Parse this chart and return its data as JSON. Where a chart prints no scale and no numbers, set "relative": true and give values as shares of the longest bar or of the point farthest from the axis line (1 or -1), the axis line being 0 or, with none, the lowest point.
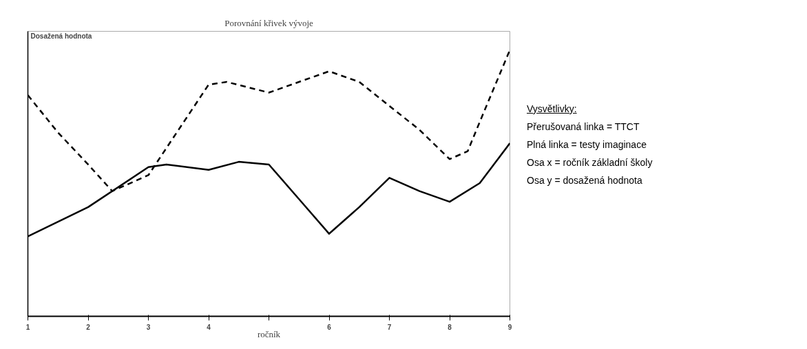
{
  "chart_data": {
    "type": "line",
    "title": "Porovnání křivek vývoje",
    "xlabel": "ročník",
    "ylabel": "Dosažená hodnota",
    "relative": true,
    "xlim": [
      1,
      9
    ],
    "xticks": [
      1,
      2,
      3,
      4,
      {
        "value": 5,
        "label": null
      },
      6,
      7,
      8,
      9
    ],
    "grid": false,
    "marker": "none",
    "series": [
      {
        "color": "#000000",
        "line_style": "dashed",
        "x": [
          1,
          1.5,
          2,
          2.4,
          3,
          3.5,
          4,
          4.3,
          5,
          5.5,
          6,
          6.5,
          7,
          7.5,
          8,
          8.3,
          8.5,
          9
        ],
        "values": [
          0.83,
          0.69,
          0.57,
          0.47,
          0.53,
          0.7,
          0.87,
          0.88,
          0.84,
          0.88,
          0.92,
          0.88,
          0.79,
          0.7,
          0.59,
          0.62,
          0.73,
          1
        ]
      },
      {
        "color": "#000000",
        "line_style": "solid",
        "x": [
          1,
          2,
          3,
          3.3,
          4,
          4.5,
          5,
          5.5,
          6,
          6.5,
          7,
          7.5,
          8,
          8.5,
          9
        ],
        "values": [
          0.3,
          0.41,
          0.56,
          0.57,
          0.55,
          0.58,
          0.57,
          0.44,
          0.31,
          0.41,
          0.52,
          0.47,
          0.43,
          0.5,
          0.65
        ]
      }
    ],
    "annotations": [
      "Vysvětlivky:",
      "Přerušovaná linka = TTCT",
      "Plná linka = testy imaginace",
      "Osa x = ročník základní školy",
      "Osa y = dosažená hodnota"
    ]
  }
}
